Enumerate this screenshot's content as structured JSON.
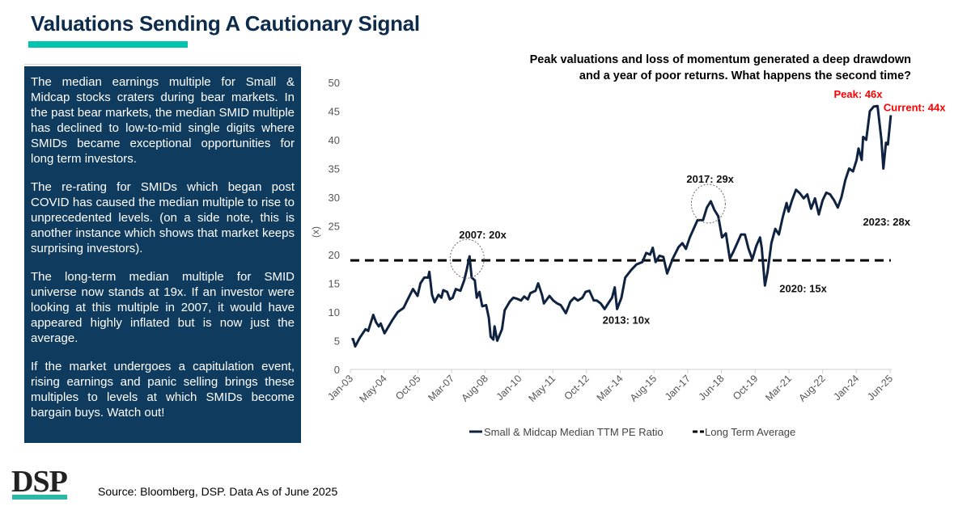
{
  "header": {
    "title": "Valuations Sending A Cautionary Signal"
  },
  "panel": {
    "paragraphs": [
      "The median earnings multiple for Small & Midcap stocks craters during bear markets. In the past bear markets, the median SMID multiple has declined to low-to-mid single digits where SMIDs became exceptional opportunities for long term investors.",
      "The re-rating for SMIDs which began post COVID has caused the median multiple to rise to unprecedented levels. (on a side note, this is another instance which shows that market keeps surprising investors).",
      "The long-term median multiple for SMID universe now stands at 19x. If an investor were looking at this multiple in 2007, it would have appeared highly inflated but is now just the average.",
      "If the market undergoes a capitulation event, rising earnings and panic selling brings these multiples to levels at which SMIDs become bargain buys. Watch out!"
    ]
  },
  "footer": {
    "logo": "DSP",
    "source": "Source: Bloomberg, DSP. Data As of June 2025"
  },
  "colors": {
    "series": "#0f2340",
    "average": "#000000",
    "highlight": "#ff0000",
    "panel": "#0f3b5e",
    "accent": "#00c4b0"
  },
  "chart_data": {
    "type": "line",
    "title": "Peak valuations and loss of momentum generated a deep drawdown and a year of poor returns. What happens the second time?",
    "ylabel": "(x)",
    "ylim": [
      0,
      50
    ],
    "yticks": [
      0,
      5,
      10,
      15,
      20,
      25,
      30,
      35,
      40,
      45,
      50
    ],
    "xlim": [
      2003.0,
      2025.42
    ],
    "xtick_labels": [
      "Jan-03",
      "May-04",
      "Oct-05",
      "Mar-07",
      "Aug-08",
      "Jan-10",
      "May-11",
      "Oct-12",
      "Mar-14",
      "Aug-15",
      "Jan-17",
      "Jun-18",
      "Oct-19",
      "Mar-21",
      "Aug-22",
      "Jan-24",
      "Jun-25"
    ],
    "grid": false,
    "legend_placement": "bottom",
    "series": [
      {
        "name": "Small & Midcap Median TTM PE Ratio",
        "style": "solid",
        "x": [
          2003.05,
          2003.11,
          2003.2,
          2003.39,
          2003.63,
          2003.74,
          2003.95,
          2004.07,
          2004.18,
          2004.26,
          2004.42,
          2004.73,
          2004.97,
          2005.21,
          2005.36,
          2005.6,
          2005.79,
          2005.91,
          2006.07,
          2006.23,
          2006.28,
          2006.39,
          2006.5,
          2006.66,
          2006.78,
          2006.86,
          2007.02,
          2007.13,
          2007.25,
          2007.38,
          2007.57,
          2007.73,
          2007.84,
          2007.95,
          2008.04,
          2008.17,
          2008.25,
          2008.36,
          2008.48,
          2008.64,
          2008.75,
          2008.83,
          2008.94,
          2008.99,
          2009.1,
          2009.3,
          2009.41,
          2009.62,
          2009.77,
          2009.93,
          2010.09,
          2010.22,
          2010.37,
          2010.48,
          2010.69,
          2010.8,
          2010.96,
          2011.04,
          2011.27,
          2011.43,
          2011.59,
          2011.74,
          2011.95,
          2012.14,
          2012.3,
          2012.45,
          2012.64,
          2012.77,
          2012.93,
          2013.11,
          2013.24,
          2013.4,
          2013.56,
          2013.71,
          2013.87,
          2013.98,
          2014.08,
          2014.26,
          2014.42,
          2014.66,
          2014.89,
          2015.13,
          2015.29,
          2015.45,
          2015.56,
          2015.68,
          2015.84,
          2016.0,
          2016.16,
          2016.39,
          2016.63,
          2016.79,
          2016.94,
          2017.1,
          2017.26,
          2017.42,
          2017.65,
          2017.81,
          2017.97,
          2018.12,
          2018.28,
          2018.44,
          2018.6,
          2018.76,
          2018.91,
          2019.07,
          2019.23,
          2019.39,
          2019.54,
          2019.7,
          2019.86,
          2020.02,
          2020.09,
          2020.22,
          2020.33,
          2020.49,
          2020.65,
          2020.8,
          2020.96,
          2021.12,
          2021.2,
          2021.35,
          2021.51,
          2021.67,
          2021.83,
          2021.98,
          2022.14,
          2022.3,
          2022.46,
          2022.62,
          2022.77,
          2022.93,
          2023.09,
          2023.25,
          2023.4,
          2023.56,
          2023.72,
          2023.88,
          2024.03,
          2024.11,
          2024.24,
          2024.3,
          2024.43,
          2024.58,
          2024.74,
          2024.9,
          2025.06,
          2025.14,
          2025.25,
          2025.33,
          2025.45
        ],
        "values": [
          5.2,
          5.3,
          4,
          5.5,
          7,
          6.7,
          9.5,
          8.2,
          7.5,
          8,
          6.3,
          8.5,
          10,
          10.7,
          12,
          14,
          12.8,
          15,
          16,
          16,
          17,
          13,
          11.7,
          13,
          12.5,
          13.8,
          13.5,
          12.2,
          12.5,
          14,
          13.7,
          15.5,
          17.5,
          19.7,
          16,
          15.5,
          12.5,
          13.5,
          11,
          11.2,
          9,
          5.7,
          5.2,
          7.5,
          5,
          7,
          10.3,
          11.8,
          12.5,
          12.3,
          12,
          12.7,
          12.2,
          13.3,
          13.7,
          15,
          13,
          11.5,
          12.8,
          12,
          11.5,
          11.2,
          9.8,
          11.8,
          12.5,
          12,
          12.5,
          13.5,
          13.7,
          12,
          12,
          11.5,
          10.5,
          11.5,
          12.5,
          14.3,
          10.5,
          12.5,
          16,
          17.3,
          18.3,
          18.7,
          20.3,
          20,
          21.2,
          18.7,
          19.8,
          19.6,
          16.7,
          19.3,
          21.3,
          22,
          21,
          23,
          24.5,
          26,
          26,
          28.2,
          29.3,
          27.8,
          26.7,
          23,
          23.7,
          19.3,
          20.5,
          22,
          23.5,
          23.5,
          21,
          19.2,
          21.5,
          23,
          21.2,
          14.6,
          17,
          22,
          24.5,
          23.5,
          26.5,
          29,
          27.5,
          29.5,
          31.3,
          30.7,
          29.8,
          30.5,
          28,
          29.8,
          27,
          29.5,
          30.8,
          30.5,
          29.5,
          28.2,
          30,
          33,
          35,
          34.5,
          36.5,
          38.5,
          36.5,
          40.5,
          40,
          45,
          45.8,
          45.9,
          40,
          35,
          39.5,
          39.2,
          44.3
        ]
      },
      {
        "name": "Long Term Average",
        "style": "dashed",
        "x": [
          2003.0,
          2025.45
        ],
        "values": [
          19,
          19
        ]
      }
    ],
    "annotations": [
      {
        "text": "2007: 20x",
        "x": 2007.95,
        "y": 19.7,
        "circled": true
      },
      {
        "text": "2013: 10x",
        "x": 2013.98,
        "y": 10.5
      },
      {
        "text": "2017: 29x",
        "x": 2017.97,
        "y": 29.3,
        "circled": true
      },
      {
        "text": "2020: 15x",
        "x": 2020.22,
        "y": 14.6
      },
      {
        "text": "2023: 28x",
        "x": 2023.25,
        "y": 28.2
      },
      {
        "text": "Peak: 46x",
        "x": 2024.9,
        "y": 45.9,
        "color": "red"
      },
      {
        "text": "Current: 44x",
        "x": 2025.45,
        "y": 44.3,
        "color": "red"
      }
    ]
  }
}
